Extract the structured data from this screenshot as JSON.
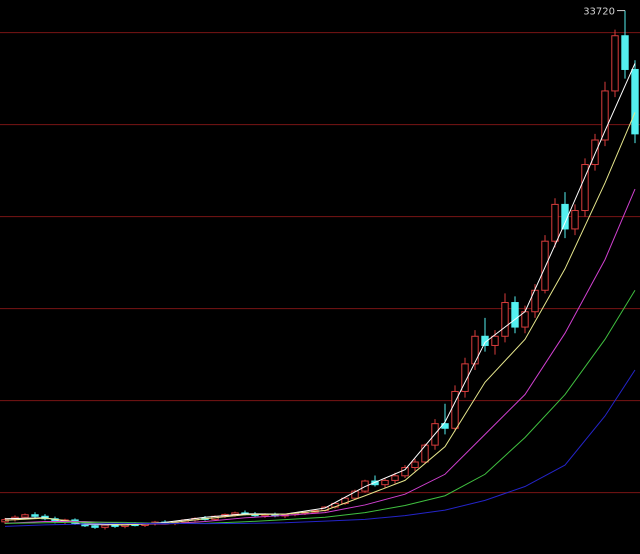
{
  "chart_data": {
    "type": "candlestick",
    "up_color": "#d83c3c",
    "down_color": "#54f0f0",
    "grid": true,
    "grid_color": "#7a1414",
    "ylim": [
      16000,
      34000
    ],
    "yticks": [
      18000,
      21000,
      24000,
      27000,
      30000,
      33000
    ],
    "open": [
      17050,
      17120,
      17200,
      17280,
      17230,
      17150,
      17060,
      17110,
      16990,
      16920,
      16870,
      16940,
      16900,
      16960,
      16930,
      16990,
      17040,
      16990,
      17030,
      17110,
      17160,
      17130,
      17230,
      17290,
      17340,
      17300,
      17250,
      17300,
      17240,
      17280,
      17330,
      17360,
      17420,
      17530,
      17650,
      17820,
      18050,
      18380,
      18260,
      18400,
      18550,
      18820,
      19000,
      19550,
      20250,
      20100,
      21300,
      22200,
      23100,
      22800,
      23100,
      24200,
      23400,
      23900,
      24600,
      26200,
      27400,
      26600,
      27200,
      28700,
      29500,
      31100,
      32900,
      31800
    ],
    "high": [
      17180,
      17260,
      17320,
      17360,
      17300,
      17220,
      17150,
      17160,
      17060,
      17000,
      16980,
      17010,
      16990,
      17040,
      17020,
      17080,
      17100,
      17070,
      17140,
      17200,
      17240,
      17260,
      17320,
      17380,
      17420,
      17370,
      17330,
      17350,
      17310,
      17360,
      17400,
      17450,
      17560,
      17680,
      17860,
      18100,
      18420,
      18560,
      18480,
      18650,
      18900,
      19100,
      19600,
      20400,
      20900,
      21500,
      22400,
      23300,
      23700,
      23300,
      24500,
      24400,
      24100,
      24800,
      26400,
      27600,
      27800,
      27400,
      28900,
      29700,
      31400,
      33100,
      33720,
      32100
    ],
    "low": [
      16980,
      17060,
      17150,
      17180,
      17100,
      17000,
      16980,
      16950,
      16880,
      16820,
      16800,
      16850,
      16840,
      16900,
      16880,
      16930,
      16960,
      16940,
      16990,
      17060,
      17090,
      17100,
      17180,
      17220,
      17260,
      17210,
      17180,
      17200,
      17170,
      17230,
      17270,
      17320,
      17380,
      17480,
      17600,
      17780,
      18000,
      18200,
      18150,
      18300,
      18480,
      18700,
      18950,
      19400,
      19900,
      20000,
      21100,
      22000,
      22600,
      22500,
      22900,
      23200,
      23200,
      23700,
      24500,
      26000,
      26300,
      26400,
      27000,
      28500,
      29300,
      30900,
      31500,
      29400
    ],
    "close": [
      17120,
      17200,
      17280,
      17230,
      17150,
      17060,
      17110,
      16990,
      16920,
      16870,
      16940,
      16900,
      16960,
      16930,
      16990,
      17040,
      16990,
      17030,
      17110,
      17160,
      17130,
      17230,
      17290,
      17340,
      17300,
      17250,
      17300,
      17240,
      17280,
      17330,
      17360,
      17420,
      17530,
      17650,
      17820,
      18050,
      18380,
      18260,
      18400,
      18550,
      18820,
      19000,
      19550,
      20250,
      20100,
      21300,
      22200,
      23100,
      22800,
      23100,
      24200,
      23400,
      23900,
      24600,
      26200,
      27400,
      26600,
      27200,
      28700,
      29500,
      31100,
      32900,
      31800,
      29700
    ],
    "high_label_index": 62,
    "ma_x": [
      0,
      4,
      8,
      12,
      16,
      20,
      24,
      28,
      32,
      36,
      40,
      44,
      48,
      52,
      56,
      60,
      63
    ],
    "series": [
      {
        "color": "#ffffff",
        "values": [
          17150,
          17180,
          16960,
          16950,
          17030,
          17200,
          17310,
          17300,
          17500,
          18200,
          18750,
          20300,
          22900,
          23900,
          26800,
          29800,
          32000
        ]
      },
      {
        "color": "#e6e68c",
        "values": [
          17100,
          17170,
          17020,
          16950,
          17000,
          17150,
          17280,
          17300,
          17420,
          17900,
          18400,
          19500,
          21600,
          23000,
          25300,
          28100,
          30400
        ]
      },
      {
        "color": "#d040d0",
        "values": [
          17000,
          17060,
          17060,
          17000,
          16980,
          17060,
          17180,
          17260,
          17350,
          17600,
          17950,
          18600,
          19900,
          21200,
          23200,
          25600,
          27900
        ]
      },
      {
        "color": "#40c040",
        "values": [
          17000,
          17020,
          17040,
          17030,
          17000,
          17000,
          17050,
          17120,
          17200,
          17350,
          17580,
          17900,
          18600,
          19800,
          21200,
          23000,
          24600
        ]
      },
      {
        "color": "#2424c8",
        "values": [
          16900,
          16950,
          16980,
          17000,
          17000,
          16990,
          17000,
          17020,
          17070,
          17130,
          17250,
          17430,
          17750,
          18200,
          18900,
          20500,
          22000
        ]
      }
    ]
  }
}
